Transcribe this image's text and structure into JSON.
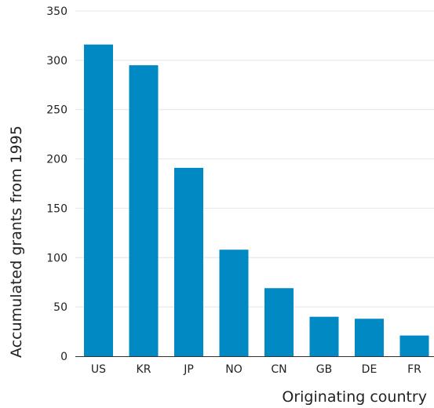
{
  "chart_data": {
    "type": "bar",
    "title": "",
    "xlabel": "Originating country",
    "ylabel": "Accumulated grants from 1995",
    "categories": [
      "US",
      "KR",
      "JP",
      "NO",
      "CN",
      "GB",
      "DE",
      "FR"
    ],
    "values": [
      316,
      295,
      191,
      108,
      69,
      40,
      38,
      21
    ],
    "ylim": [
      0,
      350
    ],
    "yticks": [
      0,
      50,
      100,
      150,
      200,
      250,
      300,
      350
    ],
    "grid": true,
    "legend": "none",
    "bar_color": "#0089c2"
  }
}
